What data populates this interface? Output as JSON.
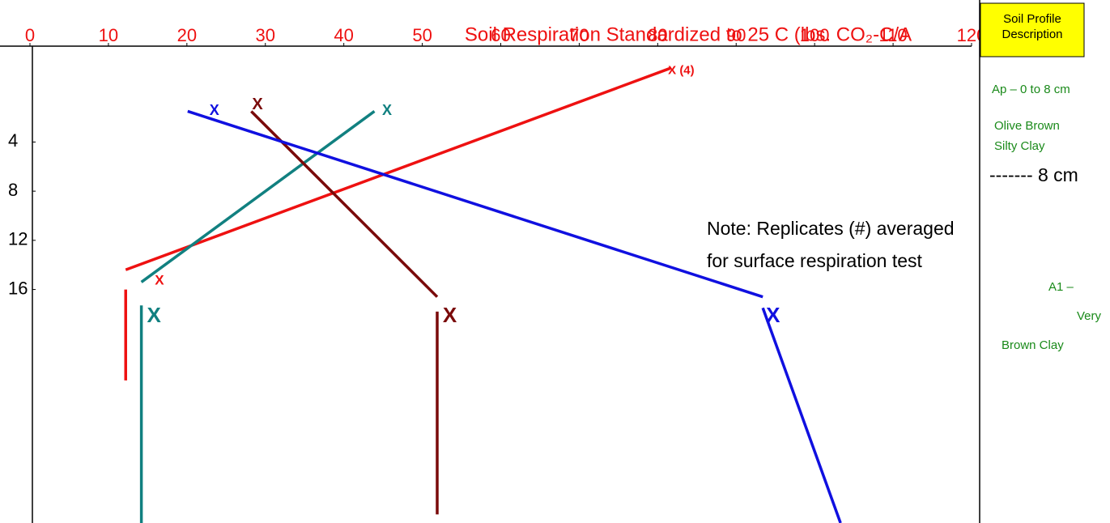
{
  "chart_data": {
    "type": "line",
    "title": "Soil Respiration Standardized to 25 C (lbs. CO₂-C/A",
    "xlim": [
      0,
      120
    ],
    "xticks": [
      0,
      10,
      20,
      30,
      40,
      50,
      60,
      70,
      80,
      90,
      100,
      110,
      120
    ],
    "ylim": [
      -3.8,
      35
    ],
    "yticks": [
      4,
      8,
      12,
      16
    ],
    "series": [
      {
        "color": "#ee1111",
        "segments": [
          {
            "x": [
              12.2,
              81.6
            ],
            "y": [
              14.4,
              -2.0
            ]
          },
          {
            "x": [
              12.2,
              12.2
            ],
            "y": [
              16.0,
              23.4
            ]
          }
        ]
      },
      {
        "color": "#118080",
        "segments": [
          {
            "x": [
              14.2,
              43.9
            ],
            "y": [
              15.4,
              1.5
            ]
          },
          {
            "x": [
              14.2,
              14.2
            ],
            "y": [
              17.3,
              35.0
            ]
          }
        ]
      },
      {
        "color": "#7a0a0a",
        "segments": [
          {
            "x": [
              28.2,
              51.9
            ],
            "y": [
              1.5,
              16.6
            ]
          },
          {
            "x": [
              51.9,
              51.9
            ],
            "y": [
              17.8,
              34.3
            ]
          }
        ]
      },
      {
        "color": "#1010e0",
        "segments": [
          {
            "x": [
              20.1,
              93.4
            ],
            "y": [
              1.5,
              16.6
            ]
          },
          {
            "x": [
              93.4,
              103.3
            ],
            "y": [
              17.5,
              35.0
            ]
          }
        ]
      }
    ],
    "markers": [
      {
        "text": "X",
        "x": 23.5,
        "y": 1.5,
        "color": "#1010e0",
        "size": 18
      },
      {
        "text": "X",
        "x": 29.0,
        "y": 1.0,
        "color": "#7a0a0a",
        "size": 20
      },
      {
        "text": "X",
        "x": 45.5,
        "y": 1.5,
        "color": "#118080",
        "size": 18
      },
      {
        "text": "X (4)",
        "x": 83.0,
        "y": -1.8,
        "color": "#ee1111",
        "size": 15
      },
      {
        "text": "X",
        "x": 16.5,
        "y": 15.3,
        "color": "#ee1111",
        "size": 17
      },
      {
        "text": "X",
        "x": 15.8,
        "y": 18.2,
        "color": "#118080",
        "size": 26
      },
      {
        "text": "X",
        "x": 53.5,
        "y": 18.2,
        "color": "#7a0a0a",
        "size": 26
      },
      {
        "text": "X",
        "x": 94.7,
        "y": 18.2,
        "color": "#1010e0",
        "size": 26
      }
    ],
    "note": [
      "Note: Replicates (#) averaged",
      "for surface respiration test"
    ]
  },
  "profile": {
    "heading": "Soil Profile Description",
    "lines": [
      "Ap – 0 to 8 cm",
      "Olive Brown",
      "Silty Clay",
      "------- 8 cm",
      "A1 –",
      "Very",
      "Brown Clay"
    ]
  }
}
